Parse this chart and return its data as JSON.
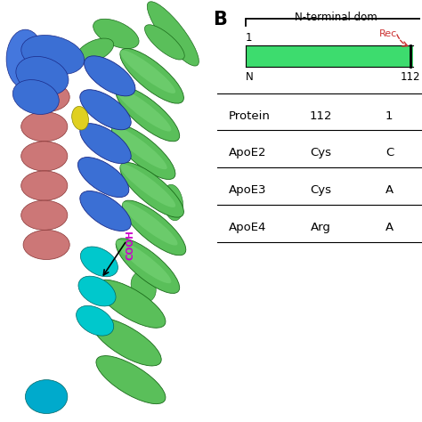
{
  "title_b": "B",
  "domain_label": "N-terminal dom",
  "receptor_label": "Rec",
  "bar_color": "#3ddc6e",
  "bar_label_1": "1",
  "bar_label_n": "N",
  "bar_label_112": "112",
  "row_labels": [
    "Protein",
    "ApoE2",
    "ApoE3",
    "ApoE4"
  ],
  "col1_vals": [
    "112",
    "Cys",
    "Cys",
    "Arg"
  ],
  "col2_vals": [
    "1",
    "C",
    "A",
    "A"
  ],
  "background_color": "#ffffff",
  "green_helix": "#5abf5a",
  "green_ribbon": "#4db84d",
  "blue_helix": "#3b6fd4",
  "red_helix": "#cc7777",
  "cyan_helix": "#00c8cc",
  "yellow_patch": "#e0d020",
  "magenta_label": "#cc00cc"
}
